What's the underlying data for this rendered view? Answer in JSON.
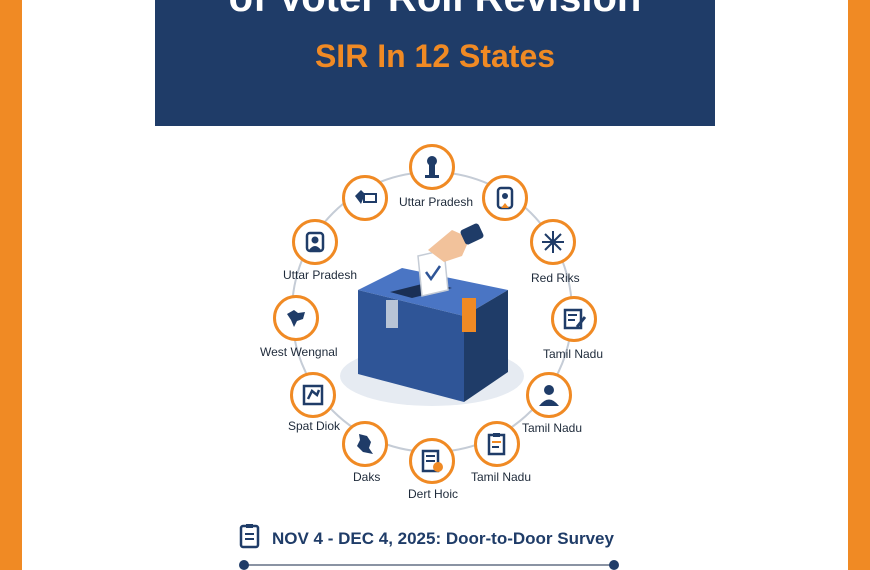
{
  "header": {
    "title": "of Voter Roll Revision",
    "subtitle": "SIR In 12 States"
  },
  "colors": {
    "frame": "#f08a24",
    "banner": "#1f3c68",
    "accent": "#f08a24",
    "box": "#2f5597"
  },
  "icons": [
    {
      "name": "emblem-icon"
    },
    {
      "name": "id-badge-icon"
    },
    {
      "name": "network-icon"
    },
    {
      "name": "document-edit-icon"
    },
    {
      "name": "person-icon"
    },
    {
      "name": "clipboard-icon"
    },
    {
      "name": "form-icon"
    },
    {
      "name": "state-map-icon"
    },
    {
      "name": "puzzle-map-icon"
    },
    {
      "name": "map-icon"
    },
    {
      "name": "user-circle-icon"
    },
    {
      "name": "map-card-icon"
    }
  ],
  "labels": {
    "top": "Uttar Pradesh",
    "upper_right": "Red Riks",
    "right_mid": "Tamil Nadu",
    "right_lower": "Tamil Nadu",
    "bottom_right": "Tamil Nadu",
    "bottom": "Dert Hoic",
    "bottom_left": "Daks",
    "left_lower": "Spat Diok",
    "left_mid": "West Wengnal",
    "upper_left": "Uttar Pradesh"
  },
  "timeline": {
    "date_text": "NOV 4 - DEC 4, 2025: Door-to-Door Survey"
  }
}
